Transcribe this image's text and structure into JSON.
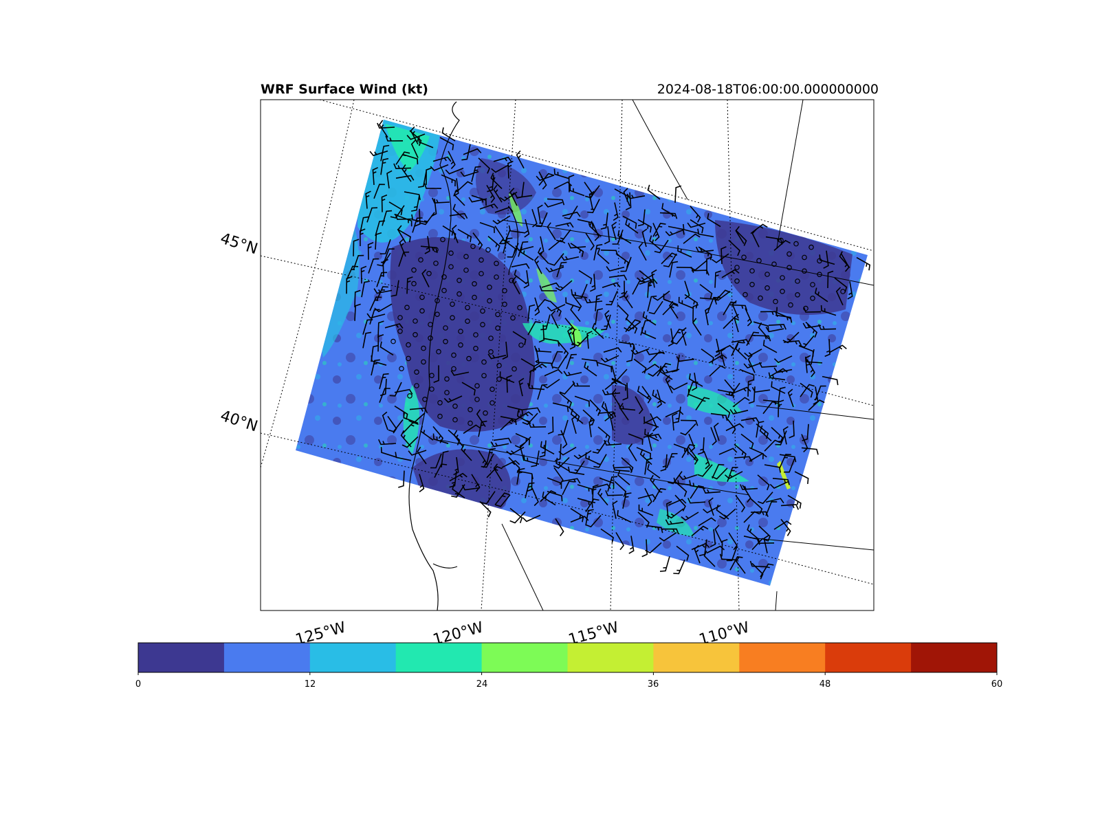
{
  "title": "WRF Surface Wind (kt)",
  "valid_time": "2024-08-18T06:00:00.000000000",
  "lat_labels": [
    "45°N",
    "40°N"
  ],
  "lon_labels": [
    "125°W",
    "120°W",
    "115°W",
    "110°W"
  ],
  "colorbar": {
    "ticks": [
      "0",
      "12",
      "24",
      "36",
      "48",
      "60"
    ],
    "range": [
      0,
      60
    ],
    "colors": [
      "#3d3891",
      "#4a7bef",
      "#29bde6",
      "#22e8b0",
      "#7dfb56",
      "#c4ef33",
      "#f7c43b",
      "#f87e21",
      "#da3c0b",
      "#a01506"
    ]
  },
  "map": {
    "field": "10 m wind speed",
    "units": "kt",
    "domain_fill_colors": [
      "#3d3891",
      "#4a7bef",
      "#29bde6",
      "#22e8b0",
      "#7dfb56"
    ],
    "barb_color": "#000000"
  }
}
